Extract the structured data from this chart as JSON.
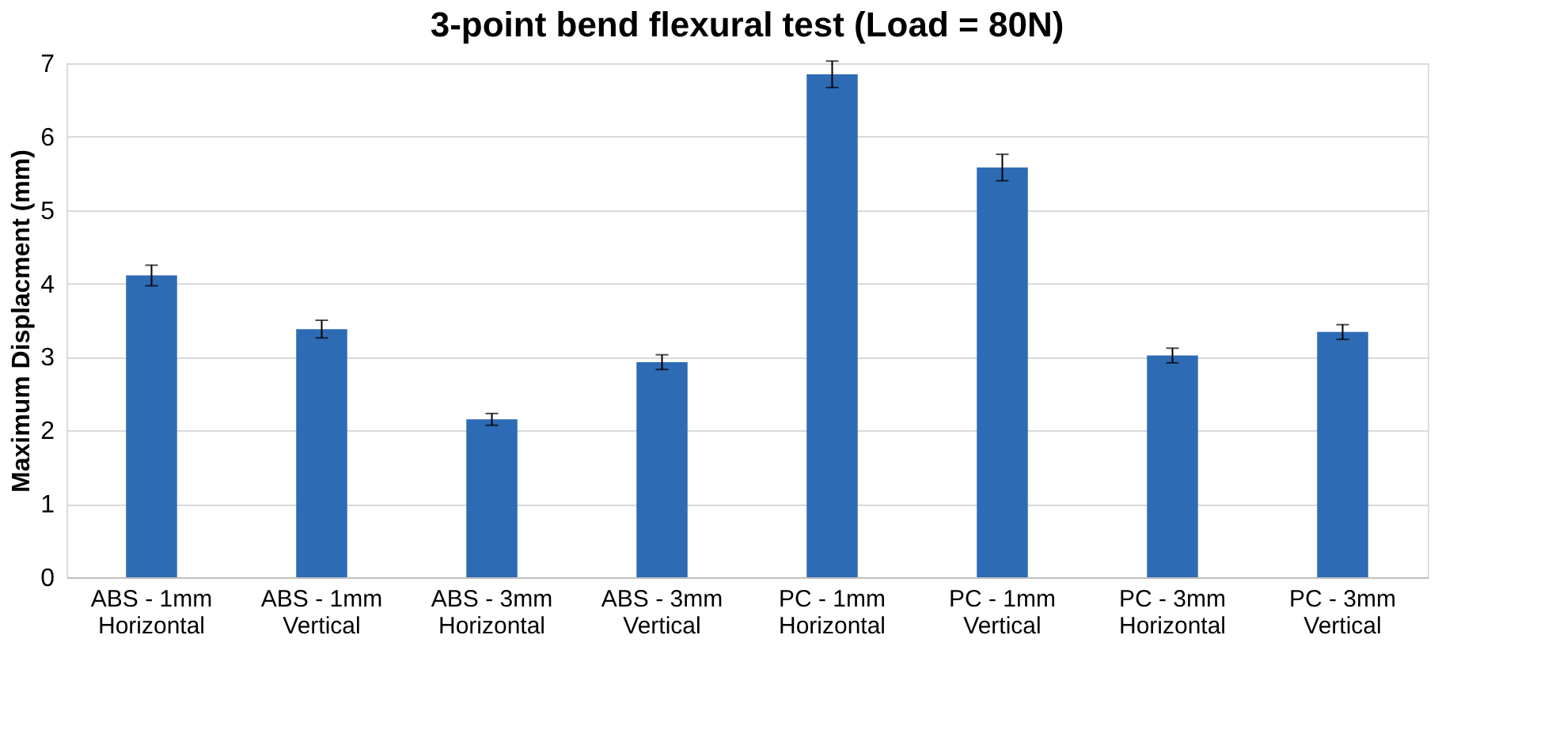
{
  "chart_data": {
    "type": "bar",
    "title": "3-point bend flexural test (Load = 80N)",
    "ylabel": "Maximum Displacment (mm)",
    "categories": [
      "ABS - 1mm\nHorizontal",
      "ABS - 1mm\nVertical",
      "ABS - 3mm\nHorizontal",
      "ABS - 3mm\nVertical",
      "PC - 1mm\nHorizontal",
      "PC - 1mm\nVertical",
      "PC - 3mm\nHorizontal",
      "PC - 3mm\nVertical"
    ],
    "values": [
      4.11,
      3.38,
      2.15,
      2.93,
      6.85,
      5.58,
      3.02,
      3.34
    ],
    "errors": [
      0.14,
      0.12,
      0.08,
      0.1,
      0.18,
      0.18,
      0.1,
      0.1
    ],
    "color": "#2e6bb5",
    "ylim": [
      0,
      7
    ],
    "yticks": [
      0,
      1,
      2,
      3,
      4,
      5,
      6,
      7
    ],
    "grid": "y"
  }
}
